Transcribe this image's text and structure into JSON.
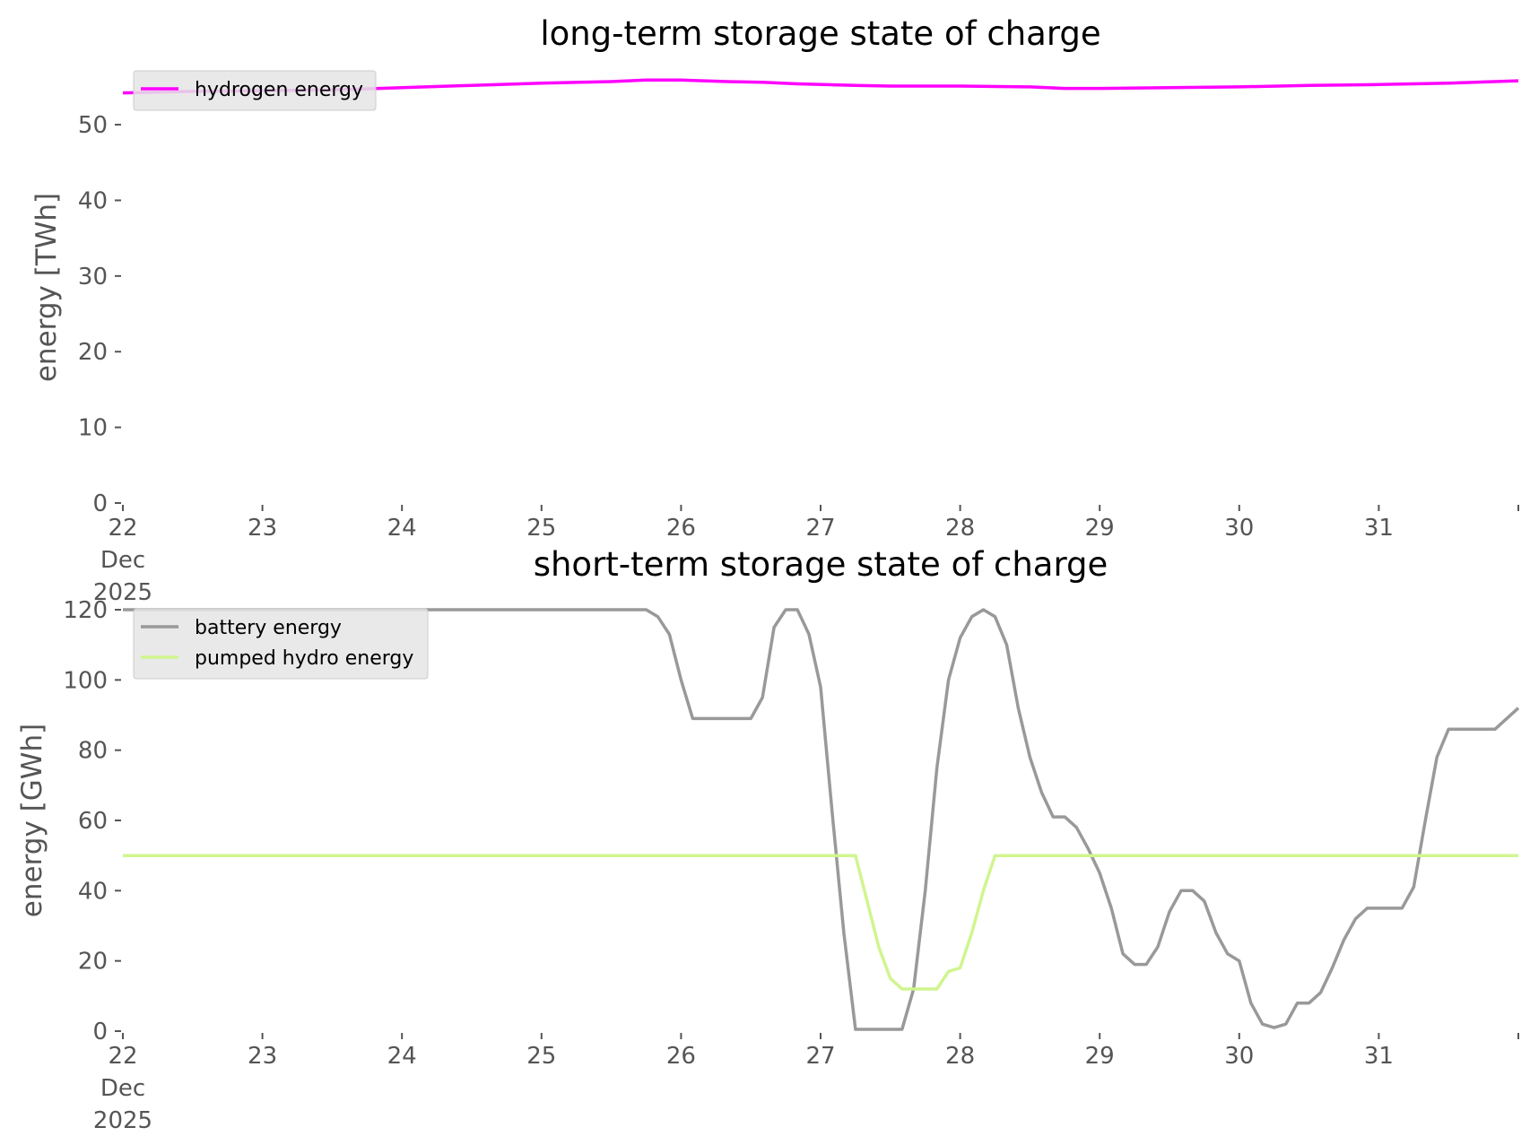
{
  "chart_data": [
    {
      "type": "line",
      "title": "long-term storage state of charge",
      "xlabel": "",
      "ylabel": "energy [TWh]",
      "xlim": [
        "2025-12-22",
        "2026-01-01"
      ],
      "ylim": [
        0,
        57
      ],
      "yticks": [
        0,
        10,
        20,
        30,
        40,
        50
      ],
      "xtick_labels": [
        {
          "day": "22",
          "month": "Dec",
          "year": "2025"
        },
        {
          "day": "23"
        },
        {
          "day": "24"
        },
        {
          "day": "25"
        },
        {
          "day": "26"
        },
        {
          "day": "27"
        },
        {
          "day": "28"
        },
        {
          "day": "29"
        },
        {
          "day": "30"
        },
        {
          "day": "31"
        }
      ],
      "grid": false,
      "legend_position": "top-left",
      "series": [
        {
          "name": "hydrogen energy",
          "color": "#ff00ff",
          "points": [
            [
              "2025-12-22 00:00",
              54.2
            ],
            [
              "2025-12-22 12:00",
              54.4
            ],
            [
              "2025-12-23 00:00",
              54.5
            ],
            [
              "2025-12-23 12:00",
              54.6
            ],
            [
              "2025-12-24 00:00",
              54.9
            ],
            [
              "2025-12-24 12:00",
              55.2
            ],
            [
              "2025-12-25 00:00",
              55.5
            ],
            [
              "2025-12-25 12:00",
              55.7
            ],
            [
              "2025-12-25 18:00",
              55.9
            ],
            [
              "2025-12-26 00:00",
              55.9
            ],
            [
              "2025-12-26 08:00",
              55.7
            ],
            [
              "2025-12-26 14:00",
              55.6
            ],
            [
              "2025-12-26 20:00",
              55.4
            ],
            [
              "2025-12-27 06:00",
              55.2
            ],
            [
              "2025-12-27 12:00",
              55.1
            ],
            [
              "2025-12-28 00:00",
              55.1
            ],
            [
              "2025-12-28 12:00",
              55.0
            ],
            [
              "2025-12-28 18:00",
              54.8
            ],
            [
              "2025-12-29 00:00",
              54.8
            ],
            [
              "2025-12-29 12:00",
              54.9
            ],
            [
              "2025-12-30 00:00",
              55.0
            ],
            [
              "2025-12-30 12:00",
              55.2
            ],
            [
              "2025-12-31 00:00",
              55.3
            ],
            [
              "2025-12-31 12:00",
              55.5
            ],
            [
              "2026-01-01 00:00",
              55.8
            ]
          ]
        }
      ]
    },
    {
      "type": "line",
      "title": "short-term storage state of charge",
      "xlabel": "",
      "ylabel": "energy [GWh]",
      "xlim": [
        "2025-12-22",
        "2026-01-01"
      ],
      "ylim": [
        0,
        120
      ],
      "yticks": [
        0,
        20,
        40,
        60,
        80,
        100,
        120
      ],
      "xtick_labels": [
        {
          "day": "22",
          "month": "Dec",
          "year": "2025"
        },
        {
          "day": "23"
        },
        {
          "day": "24"
        },
        {
          "day": "25"
        },
        {
          "day": "26"
        },
        {
          "day": "27"
        },
        {
          "day": "28"
        },
        {
          "day": "29"
        },
        {
          "day": "30"
        },
        {
          "day": "31"
        }
      ],
      "grid": false,
      "legend_position": "top-left",
      "series": [
        {
          "name": "battery energy",
          "color": "#999999",
          "points": [
            [
              "2025-12-22 00:00",
              120
            ],
            [
              "2025-12-25 18:00",
              120
            ],
            [
              "2025-12-25 20:00",
              118
            ],
            [
              "2025-12-25 22:00",
              113
            ],
            [
              "2025-12-26 00:00",
              100
            ],
            [
              "2025-12-26 02:00",
              89
            ],
            [
              "2025-12-26 12:00",
              89
            ],
            [
              "2025-12-26 14:00",
              95
            ],
            [
              "2025-12-26 16:00",
              115
            ],
            [
              "2025-12-26 18:00",
              120
            ],
            [
              "2025-12-26 20:00",
              120
            ],
            [
              "2025-12-26 22:00",
              113
            ],
            [
              "2025-12-27 00:00",
              98
            ],
            [
              "2025-12-27 02:00",
              62
            ],
            [
              "2025-12-27 04:00",
              28
            ],
            [
              "2025-12-27 06:00",
              0.5
            ],
            [
              "2025-12-27 14:00",
              0.5
            ],
            [
              "2025-12-27 16:00",
              12
            ],
            [
              "2025-12-27 18:00",
              40
            ],
            [
              "2025-12-27 20:00",
              75
            ],
            [
              "2025-12-27 22:00",
              100
            ],
            [
              "2025-12-28 00:00",
              112
            ],
            [
              "2025-12-28 02:00",
              118
            ],
            [
              "2025-12-28 04:00",
              120
            ],
            [
              "2025-12-28 06:00",
              118
            ],
            [
              "2025-12-28 08:00",
              110
            ],
            [
              "2025-12-28 10:00",
              92
            ],
            [
              "2025-12-28 12:00",
              78
            ],
            [
              "2025-12-28 14:00",
              68
            ],
            [
              "2025-12-28 16:00",
              61
            ],
            [
              "2025-12-28 18:00",
              61
            ],
            [
              "2025-12-28 20:00",
              58
            ],
            [
              "2025-12-28 22:00",
              52
            ],
            [
              "2025-12-29 00:00",
              45
            ],
            [
              "2025-12-29 02:00",
              35
            ],
            [
              "2025-12-29 04:00",
              22
            ],
            [
              "2025-12-29 06:00",
              19
            ],
            [
              "2025-12-29 08:00",
              19
            ],
            [
              "2025-12-29 10:00",
              24
            ],
            [
              "2025-12-29 12:00",
              34
            ],
            [
              "2025-12-29 14:00",
              40
            ],
            [
              "2025-12-29 16:00",
              40
            ],
            [
              "2025-12-29 18:00",
              37
            ],
            [
              "2025-12-29 20:00",
              28
            ],
            [
              "2025-12-29 22:00",
              22
            ],
            [
              "2025-12-30 00:00",
              20
            ],
            [
              "2025-12-30 02:00",
              8
            ],
            [
              "2025-12-30 04:00",
              2
            ],
            [
              "2025-12-30 06:00",
              1
            ],
            [
              "2025-12-30 08:00",
              2
            ],
            [
              "2025-12-30 10:00",
              8
            ],
            [
              "2025-12-30 12:00",
              8
            ],
            [
              "2025-12-30 14:00",
              11
            ],
            [
              "2025-12-30 16:00",
              18
            ],
            [
              "2025-12-30 18:00",
              26
            ],
            [
              "2025-12-30 20:00",
              32
            ],
            [
              "2025-12-30 22:00",
              35
            ],
            [
              "2025-12-31 00:00",
              35
            ],
            [
              "2025-12-31 04:00",
              35
            ],
            [
              "2025-12-31 06:00",
              41
            ],
            [
              "2025-12-31 08:00",
              60
            ],
            [
              "2025-12-31 10:00",
              78
            ],
            [
              "2025-12-31 12:00",
              86
            ],
            [
              "2025-12-31 20:00",
              86
            ],
            [
              "2025-12-31 22:00",
              89
            ],
            [
              "2026-01-01 00:00",
              92
            ]
          ]
        },
        {
          "name": "pumped hydro energy",
          "color": "#d0f58f",
          "points": [
            [
              "2025-12-22 00:00",
              50
            ],
            [
              "2025-12-27 06:00",
              50
            ],
            [
              "2025-12-27 08:00",
              37
            ],
            [
              "2025-12-27 10:00",
              24
            ],
            [
              "2025-12-27 12:00",
              15
            ],
            [
              "2025-12-27 14:00",
              12
            ],
            [
              "2025-12-27 20:00",
              12
            ],
            [
              "2025-12-27 22:00",
              17
            ],
            [
              "2025-12-28 00:00",
              18
            ],
            [
              "2025-12-28 02:00",
              28
            ],
            [
              "2025-12-28 04:00",
              40
            ],
            [
              "2025-12-28 06:00",
              50
            ],
            [
              "2026-01-01 00:00",
              50
            ]
          ]
        }
      ]
    }
  ]
}
